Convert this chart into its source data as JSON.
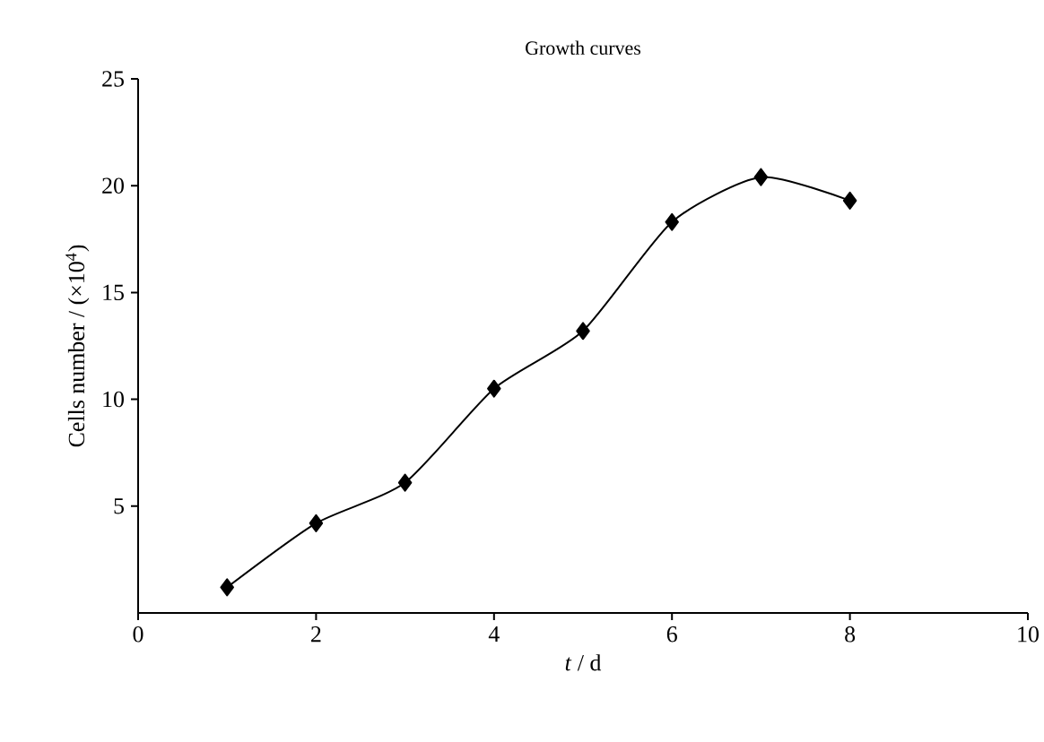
{
  "chart_data": {
    "type": "line",
    "title": "Growth curves",
    "xlabel": "*t* / d",
    "ylabel": "Cells number / (×10$^{4}$)",
    "x": [
      1,
      2,
      3,
      4,
      5,
      6,
      7,
      8
    ],
    "series": [
      {
        "color": "#000000",
        "values": [
          1.2,
          4.2,
          6.1,
          10.5,
          13.2,
          18.3,
          20.4,
          19.3
        ]
      }
    ],
    "xlim": [
      0,
      10
    ],
    "xticks": [
      0,
      2,
      4,
      6,
      8,
      10
    ],
    "ylim": [
      0,
      25
    ],
    "yticks": [
      5,
      10,
      15,
      20,
      25
    ],
    "marker": "diamond",
    "line_style": "solid"
  }
}
